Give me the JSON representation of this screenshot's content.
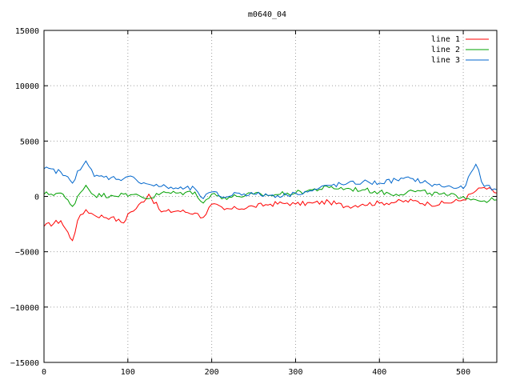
{
  "chart_data": {
    "type": "line",
    "title": "m0640_04",
    "xlim": [
      0,
      540
    ],
    "ylim": [
      -15000,
      15000
    ],
    "grid": true,
    "legend_position": "top-right",
    "x_ticks": [
      0,
      100,
      200,
      300,
      400,
      500
    ],
    "y_ticks": [
      -15000,
      -10000,
      -5000,
      0,
      5000,
      10000,
      15000
    ],
    "x_tick_labels": [
      "0",
      "100",
      "200",
      "300",
      "400",
      "500"
    ],
    "y_tick_labels": [
      "−15000",
      "−10000",
      "−5000",
      "0",
      "5000",
      "10000",
      "15000"
    ],
    "x": [
      0,
      20,
      34,
      40,
      50,
      60,
      80,
      95,
      100,
      110,
      125,
      140,
      160,
      180,
      190,
      200,
      215,
      230,
      250,
      270,
      290,
      300,
      320,
      340,
      360,
      380,
      400,
      420,
      440,
      460,
      480,
      500,
      515,
      525,
      540
    ],
    "series": [
      {
        "name": "line 1",
        "color": "#ff0000",
        "values": [
          -2700,
          -2200,
          -4000,
          -2200,
          -1200,
          -1700,
          -1900,
          -2400,
          -1600,
          -1100,
          200,
          -1400,
          -1300,
          -1500,
          -1900,
          -700,
          -1200,
          -1100,
          -900,
          -700,
          -600,
          -700,
          -600,
          -500,
          -900,
          -700,
          -600,
          -500,
          -400,
          -700,
          -600,
          -300,
          500,
          800,
          300
        ]
      },
      {
        "name": "line 2",
        "color": "#00a000",
        "values": [
          200,
          300,
          -900,
          0,
          1000,
          100,
          100,
          200,
          0,
          200,
          -200,
          300,
          300,
          400,
          -600,
          200,
          -100,
          0,
          200,
          100,
          300,
          300,
          600,
          800,
          700,
          600,
          400,
          200,
          500,
          300,
          100,
          0,
          -300,
          -400,
          -300
        ]
      },
      {
        "name": "line 3",
        "color": "#0066cc",
        "values": [
          2500,
          2200,
          1200,
          2300,
          3200,
          1800,
          1700,
          1600,
          1800,
          1500,
          1100,
          900,
          700,
          700,
          -200,
          400,
          -100,
          300,
          200,
          100,
          100,
          300,
          500,
          1000,
          1100,
          1300,
          1200,
          1500,
          1600,
          1100,
          900,
          700,
          2900,
          900,
          600
        ]
      }
    ]
  }
}
